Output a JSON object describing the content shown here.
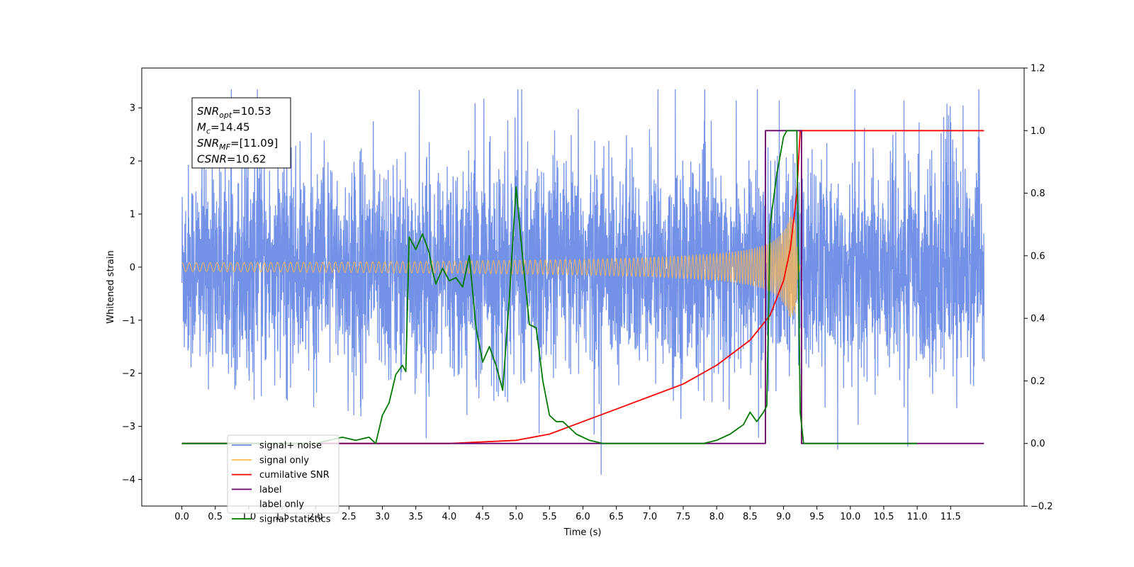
{
  "chart_data": {
    "type": "line",
    "xlabel": "Time (s)",
    "ylabel": "Whitened strain",
    "xlim": [
      -0.6,
      12.6
    ],
    "ylim": [
      -4.5,
      3.75
    ],
    "y2lim": [
      -0.2,
      1.2
    ],
    "xticks": [
      0.0,
      0.5,
      1.0,
      1.5,
      2.0,
      2.5,
      3.0,
      3.5,
      4.0,
      4.5,
      5.0,
      5.5,
      6.0,
      6.5,
      7.0,
      7.5,
      8.0,
      8.5,
      9.0,
      9.5,
      10.0,
      10.5,
      11.0,
      11.5
    ],
    "yticks": [
      -4,
      -3,
      -2,
      -1,
      0,
      1,
      2,
      3
    ],
    "y2ticks": [
      -0.2,
      0.0,
      0.2,
      0.4,
      0.6,
      0.8,
      1.0,
      1.2
    ],
    "grid": false,
    "legend_position": "lower-left",
    "annotation": {
      "lines": [
        {
          "symbol": "SNR",
          "sub": "opt",
          "value": "=10.53"
        },
        {
          "symbol": "M",
          "sub": "c",
          "value": "=14.45"
        },
        {
          "symbol": "SNR",
          "sub": "MF",
          "value": "=[11.09]"
        },
        {
          "symbol": "CSNR",
          "sub": "",
          "value": "=10.62"
        }
      ]
    },
    "series": [
      {
        "name": "signal+ noise",
        "axis": "left",
        "color": "#6b8ce6",
        "kind": "noise",
        "x_range": [
          0.0,
          12.0
        ],
        "envelope": 1.4,
        "peak_max": 3.35,
        "peak_min": -4.1
      },
      {
        "name": "signal only",
        "axis": "left",
        "color": "#ffb84d",
        "kind": "chirp",
        "x_range": [
          0.0,
          9.25
        ],
        "peak_amplitude": 1.0
      },
      {
        "name": "cumilative SNR",
        "axis": "right",
        "color": "#ff0000",
        "x": [
          0.0,
          4.0,
          5.0,
          5.5,
          6.0,
          6.5,
          7.0,
          7.5,
          8.0,
          8.5,
          8.8,
          9.0,
          9.1,
          9.2,
          9.25,
          9.3,
          12.0
        ],
        "y": [
          0.0,
          0.0,
          0.01,
          0.03,
          0.07,
          0.11,
          0.15,
          0.19,
          0.25,
          0.33,
          0.41,
          0.52,
          0.62,
          0.8,
          1.0,
          1.0,
          1.0
        ]
      },
      {
        "name": "label",
        "axis": "right",
        "color": "#6b006b",
        "x": [
          0.0,
          8.73,
          8.73,
          9.27,
          9.27,
          12.0
        ],
        "y": [
          0.0,
          0.0,
          1.0,
          1.0,
          0.0,
          0.0
        ]
      },
      {
        "name": "label only",
        "axis": "right",
        "color": "#ffffff",
        "x": [],
        "y": []
      },
      {
        "name": "signal statistics",
        "axis": "right",
        "color": "#007a00",
        "x": [
          0.0,
          2.0,
          2.2,
          2.4,
          2.6,
          2.8,
          2.9,
          3.0,
          3.1,
          3.2,
          3.3,
          3.35,
          3.4,
          3.5,
          3.6,
          3.7,
          3.75,
          3.8,
          3.9,
          4.0,
          4.1,
          4.2,
          4.3,
          4.4,
          4.5,
          4.6,
          4.7,
          4.8,
          4.9,
          5.0,
          5.1,
          5.2,
          5.3,
          5.4,
          5.5,
          5.6,
          5.7,
          5.8,
          5.9,
          6.0,
          6.1,
          6.3,
          6.5,
          7.0,
          7.5,
          7.8,
          8.0,
          8.2,
          8.4,
          8.5,
          8.6,
          8.7,
          8.75,
          8.8,
          8.9,
          9.0,
          9.05,
          9.1,
          9.2,
          9.25,
          9.3,
          11.0
        ],
        "y": [
          0.0,
          0.0,
          0.01,
          0.02,
          0.01,
          0.02,
          0.0,
          0.09,
          0.13,
          0.22,
          0.25,
          0.23,
          0.66,
          0.62,
          0.67,
          0.61,
          0.55,
          0.51,
          0.56,
          0.52,
          0.53,
          0.5,
          0.6,
          0.37,
          0.26,
          0.31,
          0.25,
          0.17,
          0.47,
          0.82,
          0.59,
          0.38,
          0.37,
          0.2,
          0.09,
          0.07,
          0.07,
          0.05,
          0.03,
          0.02,
          0.01,
          0.0,
          0.0,
          0.0,
          0.0,
          0.0,
          0.01,
          0.03,
          0.06,
          0.1,
          0.07,
          0.1,
          0.12,
          0.7,
          0.86,
          0.98,
          1.0,
          1.0,
          1.0,
          0.1,
          0.0,
          0.0
        ]
      }
    ]
  }
}
